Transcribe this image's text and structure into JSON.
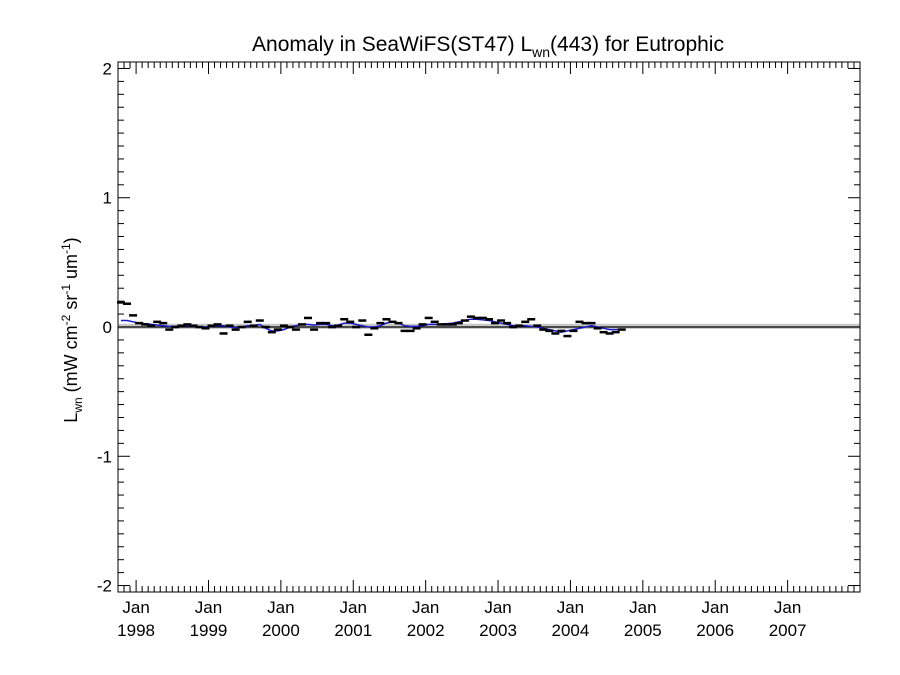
{
  "chart_data": {
    "type": "scatter",
    "title": {
      "prefix": "Anomaly in SeaWiFS(ST47) L",
      "subscript": "wn",
      "suffix": "(443) for Eutrophic"
    },
    "ylabel": {
      "main": "L",
      "subscript": "wn",
      "units_open": " (mW cm",
      "exp1": "-2",
      "units_mid1": " sr",
      "exp2": "-1",
      "units_mid2": " um",
      "exp3": "-1",
      "units_close": ")"
    },
    "ylim": [
      -2.05,
      2.05
    ],
    "yticks": [
      {
        "value": -2,
        "label": "-2"
      },
      {
        "value": -1,
        "label": "-1"
      },
      {
        "value": 0,
        "label": "0"
      },
      {
        "value": 1,
        "label": "1"
      },
      {
        "value": 2,
        "label": "2"
      }
    ],
    "xlim": [
      1997.75,
      2008.0
    ],
    "xticks": [
      {
        "value": 1998,
        "month": "Jan",
        "year": "1998"
      },
      {
        "value": 1999,
        "month": "Jan",
        "year": "1999"
      },
      {
        "value": 2000,
        "month": "Jan",
        "year": "2000"
      },
      {
        "value": 2001,
        "month": "Jan",
        "year": "2001"
      },
      {
        "value": 2002,
        "month": "Jan",
        "year": "2002"
      },
      {
        "value": 2003,
        "month": "Jan",
        "year": "2003"
      },
      {
        "value": 2004,
        "month": "Jan",
        "year": "2004"
      },
      {
        "value": 2005,
        "month": "Jan",
        "year": "2005"
      },
      {
        "value": 2006,
        "month": "Jan",
        "year": "2006"
      },
      {
        "value": 2007,
        "month": "Jan",
        "year": "2007"
      }
    ],
    "reference_line": 0,
    "band": [
      -0.015,
      0.025
    ],
    "colors": {
      "points": "#000000",
      "smooth_line": "#1a1acc",
      "reference_line": "#000000",
      "band": "#c8c8c8"
    },
    "series": [
      {
        "values": [
          0.19,
          0.18,
          0.09,
          0.03,
          0.02,
          0.01,
          0.04,
          0.03,
          -0.02,
          0.0,
          0.01,
          0.02,
          0.01,
          0.0,
          -0.01,
          0.01,
          0.02,
          -0.05,
          0.01,
          -0.02,
          0.0,
          0.04,
          0.01,
          0.05,
          0.0,
          -0.04,
          -0.02,
          0.01,
          0.0,
          -0.02,
          0.02,
          0.07,
          -0.02,
          0.03,
          0.03,
          0.0,
          0.01,
          0.06,
          0.04,
          0.0,
          0.05,
          -0.06,
          -0.01,
          0.03,
          0.06,
          0.04,
          0.03,
          -0.03,
          -0.03,
          -0.01,
          0.02,
          0.07,
          0.04,
          0.02,
          0.02,
          0.02,
          0.03,
          0.05,
          0.08,
          0.07,
          0.07,
          0.06,
          0.03,
          0.05,
          0.03,
          0.0,
          0.01,
          0.04,
          0.06,
          0.01,
          -0.02,
          -0.03,
          -0.05,
          -0.03,
          -0.07,
          -0.03,
          0.04,
          0.03,
          0.03,
          -0.01,
          -0.04,
          -0.05,
          -0.04,
          -0.02
        ],
        "smooth": [
          0.05,
          0.05,
          0.04,
          0.03,
          0.025,
          0.02,
          0.015,
          0.01,
          0.005,
          0.005,
          0.01,
          0.01,
          0.005,
          0.0,
          0.0,
          0.005,
          0.01,
          0.01,
          0.0,
          -0.005,
          0.0,
          0.01,
          0.01,
          0.02,
          -0.01,
          -0.03,
          -0.03,
          -0.02,
          0.0,
          0.01,
          0.02,
          0.02,
          0.015,
          0.02,
          0.02,
          0.01,
          0.015,
          0.03,
          0.03,
          0.02,
          0.01,
          0.0,
          0.0,
          0.01,
          0.03,
          0.04,
          0.03,
          0.01,
          0.005,
          0.005,
          0.01,
          0.02,
          0.02,
          0.02,
          0.025,
          0.03,
          0.04,
          0.05,
          0.06,
          0.06,
          0.055,
          0.05,
          0.04,
          0.03,
          0.02,
          0.01,
          0.01,
          0.01,
          0.005,
          0.0,
          -0.01,
          -0.02,
          -0.03,
          -0.04,
          -0.03,
          -0.02,
          -0.01,
          0.0,
          0.01,
          0.0,
          -0.01,
          -0.02,
          -0.02,
          -0.02
        ]
      }
    ]
  }
}
